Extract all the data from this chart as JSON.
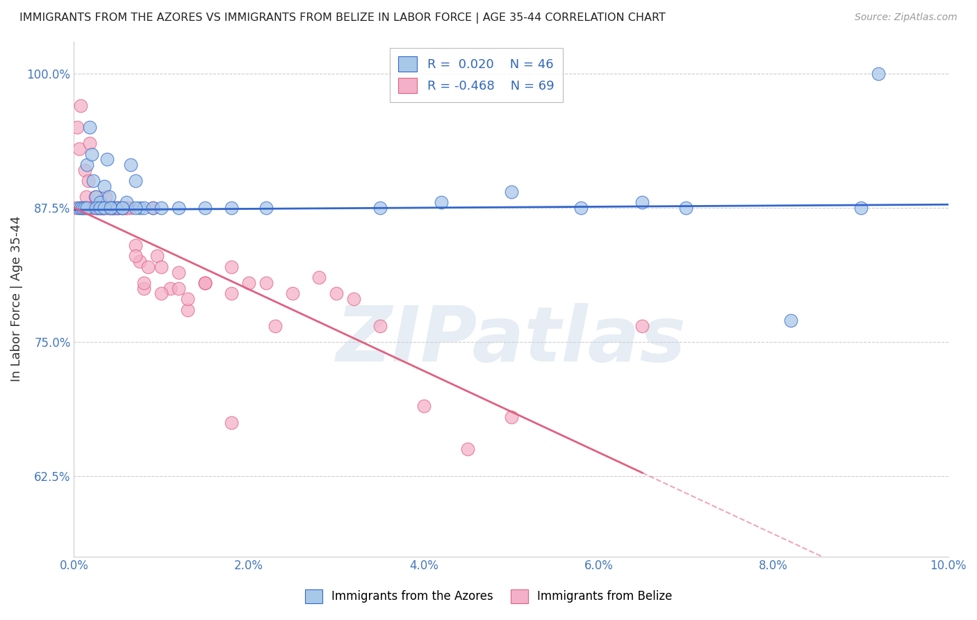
{
  "title": "IMMIGRANTS FROM THE AZORES VS IMMIGRANTS FROM BELIZE IN LABOR FORCE | AGE 35-44 CORRELATION CHART",
  "source": "Source: ZipAtlas.com",
  "ylabel": "In Labor Force | Age 35-44",
  "xlim": [
    0.0,
    10.0
  ],
  "ylim": [
    55.0,
    103.0
  ],
  "yticks": [
    62.5,
    75.0,
    87.5,
    100.0
  ],
  "xticks": [
    0.0,
    2.0,
    4.0,
    6.0,
    8.0,
    10.0
  ],
  "xtick_labels": [
    "0.0%",
    "2.0%",
    "4.0%",
    "6.0%",
    "8.0%",
    "10.0%"
  ],
  "ytick_labels": [
    "62.5%",
    "75.0%",
    "87.5%",
    "100.0%"
  ],
  "watermark": "ZIPatlas",
  "color_azores": "#a8c8e8",
  "color_belize": "#f4b0c8",
  "trendline_azores_color": "#3366cc",
  "trendline_belize_color": "#e06080",
  "background_color": "#ffffff",
  "grid_color": "#cccccc",
  "azores_x": [
    0.05,
    0.08,
    0.1,
    0.12,
    0.15,
    0.15,
    0.18,
    0.2,
    0.22,
    0.25,
    0.28,
    0.3,
    0.32,
    0.35,
    0.38,
    0.4,
    0.42,
    0.45,
    0.5,
    0.55,
    0.6,
    0.65,
    0.7,
    0.75,
    0.8,
    0.9,
    1.0,
    1.2,
    1.5,
    1.8,
    2.2,
    3.5,
    4.2,
    5.0,
    5.8,
    6.5,
    7.0,
    8.2,
    9.0,
    9.2,
    0.25,
    0.3,
    0.35,
    0.42,
    0.55,
    0.7
  ],
  "azores_y": [
    87.5,
    87.5,
    87.5,
    87.5,
    91.5,
    87.5,
    95.0,
    92.5,
    90.0,
    88.5,
    87.5,
    88.0,
    87.5,
    89.5,
    92.0,
    88.5,
    87.5,
    87.5,
    87.5,
    87.5,
    88.0,
    91.5,
    90.0,
    87.5,
    87.5,
    87.5,
    87.5,
    87.5,
    87.5,
    87.5,
    87.5,
    87.5,
    88.0,
    89.0,
    87.5,
    88.0,
    87.5,
    77.0,
    87.5,
    100.0,
    87.5,
    87.5,
    87.5,
    87.5,
    87.5,
    87.5
  ],
  "belize_x": [
    0.02,
    0.04,
    0.06,
    0.08,
    0.1,
    0.12,
    0.14,
    0.15,
    0.16,
    0.18,
    0.2,
    0.22,
    0.24,
    0.25,
    0.26,
    0.28,
    0.3,
    0.32,
    0.34,
    0.35,
    0.36,
    0.38,
    0.4,
    0.42,
    0.44,
    0.45,
    0.46,
    0.48,
    0.5,
    0.52,
    0.55,
    0.58,
    0.6,
    0.65,
    0.7,
    0.75,
    0.8,
    0.85,
    0.9,
    0.95,
    1.0,
    1.1,
    1.2,
    1.3,
    1.5,
    1.8,
    2.0,
    2.2,
    2.5,
    2.8,
    3.0,
    3.2,
    3.5,
    4.0,
    4.5,
    5.0,
    1.5,
    1.8,
    6.5,
    0.5,
    0.6,
    0.7,
    0.8,
    2.3,
    1.0,
    1.2,
    1.3,
    1.5,
    1.8
  ],
  "belize_y": [
    87.5,
    95.0,
    93.0,
    97.0,
    87.5,
    91.0,
    88.5,
    87.5,
    90.0,
    93.5,
    87.5,
    87.5,
    88.5,
    87.5,
    87.5,
    87.5,
    87.5,
    87.5,
    87.5,
    87.5,
    88.5,
    87.5,
    87.5,
    87.5,
    87.5,
    87.5,
    87.5,
    87.5,
    87.5,
    87.5,
    87.5,
    87.5,
    87.5,
    87.5,
    84.0,
    82.5,
    80.0,
    82.0,
    87.5,
    83.0,
    82.0,
    80.0,
    81.5,
    78.0,
    80.5,
    82.0,
    80.5,
    80.5,
    79.5,
    81.0,
    79.5,
    79.0,
    76.5,
    69.0,
    65.0,
    68.0,
    80.5,
    79.5,
    76.5,
    87.5,
    87.5,
    83.0,
    80.5,
    76.5,
    79.5,
    80.0,
    79.0,
    80.5,
    67.5
  ]
}
